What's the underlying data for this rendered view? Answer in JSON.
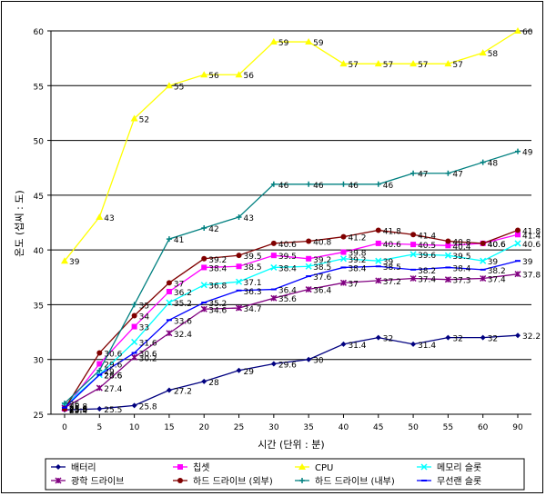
{
  "chart_data": {
    "type": "line",
    "title": "",
    "xlabel": "시간 (단위 : 분)",
    "ylabel": "온도 (섭씨 : 도)",
    "categories": [
      "0",
      "5",
      "10",
      "15",
      "20",
      "25",
      "30",
      "35",
      "40",
      "45",
      "50",
      "55",
      "60",
      "90"
    ],
    "ylim": [
      25,
      60
    ],
    "yticks": [
      25,
      30,
      35,
      40,
      45,
      50,
      55,
      60
    ],
    "grid": "horizontal",
    "legend_position": "bottom",
    "series": [
      {
        "name": "배터리",
        "color": "#000080",
        "marker": "diamond",
        "values": [
          25.4,
          25.5,
          25.8,
          27.2,
          28,
          29,
          29.6,
          30,
          31.4,
          32,
          31.4,
          32,
          32,
          32.2
        ]
      },
      {
        "name": "칩셋",
        "color": "#ff00ff",
        "marker": "square",
        "values": [
          25.5,
          29.6,
          33,
          36.2,
          38.4,
          38.5,
          39.5,
          39.2,
          39.8,
          40.6,
          40.5,
          40.4,
          40.6,
          41.4
        ]
      },
      {
        "name": "CPU",
        "color": "#ffff00",
        "marker": "triangle",
        "values": [
          39,
          43,
          52,
          55,
          56,
          56,
          59,
          59,
          57,
          57,
          57,
          57,
          58,
          60
        ]
      },
      {
        "name": "메모리 슬롯",
        "color": "#00ffff",
        "marker": "x",
        "values": [
          25.8,
          28.6,
          31.6,
          35.2,
          36.8,
          37.1,
          38.4,
          38.5,
          39.2,
          39,
          39.6,
          39.5,
          39,
          40.6
        ]
      },
      {
        "name": "광학 드라이브",
        "color": "#800080",
        "marker": "star",
        "values": [
          25.6,
          27.4,
          30.2,
          32.4,
          34.6,
          34.7,
          35.6,
          36.4,
          37,
          37.2,
          37.4,
          37.3,
          37.4,
          37.8
        ]
      },
      {
        "name": "하드 드라이브 (외부)",
        "color": "#800000",
        "marker": "circle",
        "values": [
          25.5,
          30.6,
          34,
          37,
          39.2,
          39.5,
          40.6,
          40.8,
          41.2,
          41.8,
          41.4,
          40.8,
          40.6,
          41.8
        ]
      },
      {
        "name": "하드 드라이브 (내부)",
        "color": "#008080",
        "marker": "plus",
        "values": [
          26,
          29,
          35,
          41,
          42,
          43,
          46,
          46,
          46,
          46,
          47,
          47,
          48,
          49
        ]
      },
      {
        "name": "무선랜 슬롯",
        "color": "#0000ff",
        "marker": "dash",
        "values": [
          25.6,
          28.6,
          30.6,
          33.6,
          35.2,
          36.3,
          36.4,
          37.6,
          38.4,
          38.5,
          38.2,
          38.4,
          38.2,
          39
        ]
      }
    ]
  }
}
